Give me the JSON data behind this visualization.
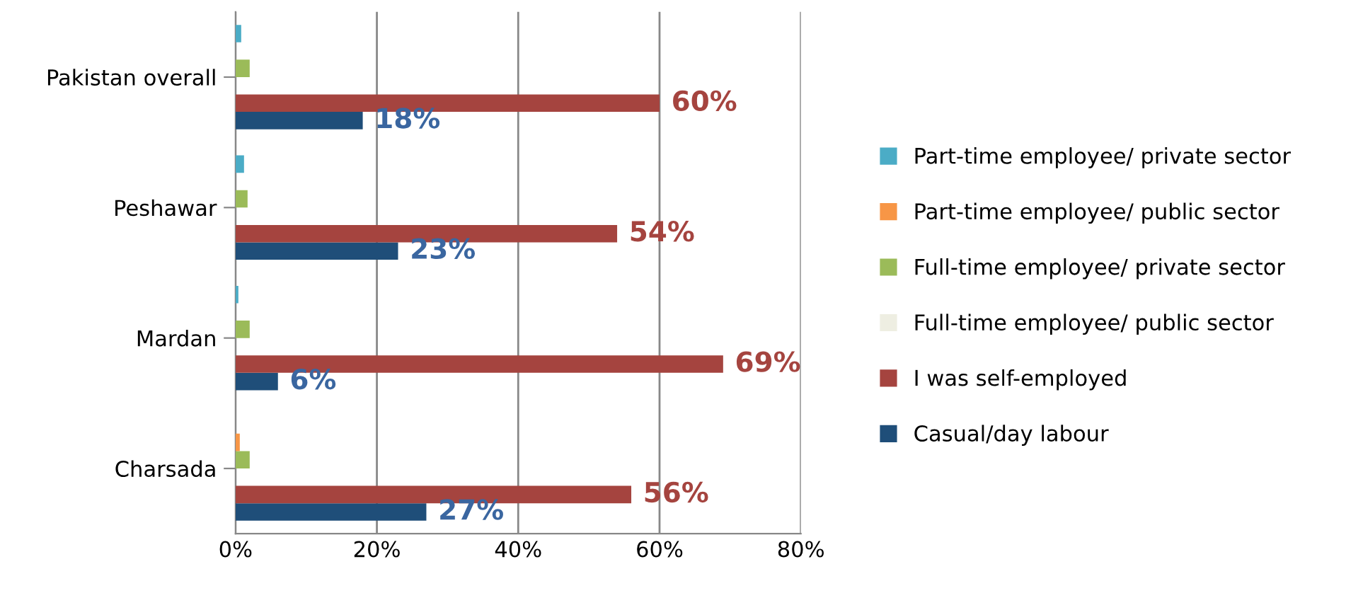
{
  "chart_data": {
    "type": "bar",
    "orientation": "horizontal",
    "categories": [
      "Pakistan overall",
      "Peshawar",
      "Mardan",
      "Charsada"
    ],
    "series": [
      {
        "name": "Casual/day labour",
        "color": "#1f4e79",
        "values": [
          18,
          23,
          6,
          27
        ],
        "value_labels": [
          "18%",
          "23%",
          "6%",
          "27%"
        ]
      },
      {
        "name": "I was self-employed",
        "color": "#a5443f",
        "values": [
          60,
          54,
          69,
          56
        ],
        "value_labels": [
          "60%",
          "54%",
          "69%",
          "56%"
        ]
      },
      {
        "name": "Full-time employee/ public sector",
        "color": "#eeeee2",
        "values": [
          0,
          0,
          0,
          0
        ]
      },
      {
        "name": "Full-time employee/ private sector",
        "color": "#9bbb59",
        "values": [
          2,
          1.7,
          2,
          2
        ]
      },
      {
        "name": "Part-time employee/ public sector",
        "color": "#f79646",
        "values": [
          0,
          0,
          0,
          0.6
        ]
      },
      {
        "name": "Part-time employee/ private sector",
        "color": "#4bacc6",
        "values": [
          0.8,
          1.2,
          0.4,
          0
        ]
      }
    ],
    "xlim": [
      0,
      80
    ],
    "xticks": [
      {
        "value": 0,
        "label": "0%"
      },
      {
        "value": 20,
        "label": "20%"
      },
      {
        "value": 40,
        "label": "40%"
      },
      {
        "value": 60,
        "label": "60%"
      },
      {
        "value": 80,
        "label": "80%"
      }
    ],
    "grid": "x",
    "legend": "right"
  }
}
